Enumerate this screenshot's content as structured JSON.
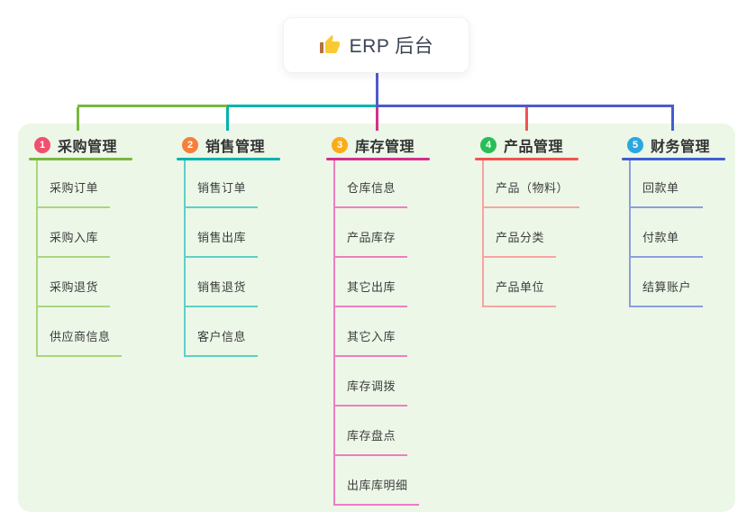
{
  "root": {
    "icon": "thumbs-up-icon",
    "label": "ERP 后台"
  },
  "branches": [
    {
      "index": "1",
      "label": "采购管理",
      "badge_color": "#f0506e",
      "line_color": "#7ab83e",
      "child_line_color": "#abd57f",
      "children": [
        "采购订单",
        "采购入库",
        "采购退货",
        "供应商信息"
      ]
    },
    {
      "index": "2",
      "label": "销售管理",
      "badge_color": "#f5803c",
      "line_color": "#00b3ab",
      "child_line_color": "#5fcfc7",
      "children": [
        "销售订单",
        "销售出库",
        "销售退货",
        "客户信息"
      ]
    },
    {
      "index": "3",
      "label": "库存管理",
      "badge_color": "#fbac18",
      "line_color": "#d62e8c",
      "child_line_color": "#ee7ec0",
      "children": [
        "仓库信息",
        "产品库存",
        "其它出库",
        "其它入库",
        "库存调拨",
        "库存盘点",
        "出库库明细"
      ]
    },
    {
      "index": "4",
      "label": "产品管理",
      "badge_color": "#2abd57",
      "line_color": "#f25350",
      "child_line_color": "#f8a49f",
      "children": [
        "产品（物料）",
        "产品分类",
        "产品单位"
      ]
    },
    {
      "index": "5",
      "label": "财务管理",
      "badge_color": "#2ba7e0",
      "line_color": "#3f5ed2",
      "child_line_color": "#8c9edd",
      "children": [
        "回款单",
        "付款单",
        "结算账户"
      ]
    }
  ],
  "colors": {
    "root_link": "#4d5cc9",
    "panel_bg": "#ecf7e8",
    "canvas_bg": "#ffffff",
    "branch_text": "#333333",
    "child_text": "#3d3d3d",
    "root_text": "#3b4454",
    "thumb_yellow": "#fbca32",
    "thumb_cuff": "#b5713f"
  }
}
